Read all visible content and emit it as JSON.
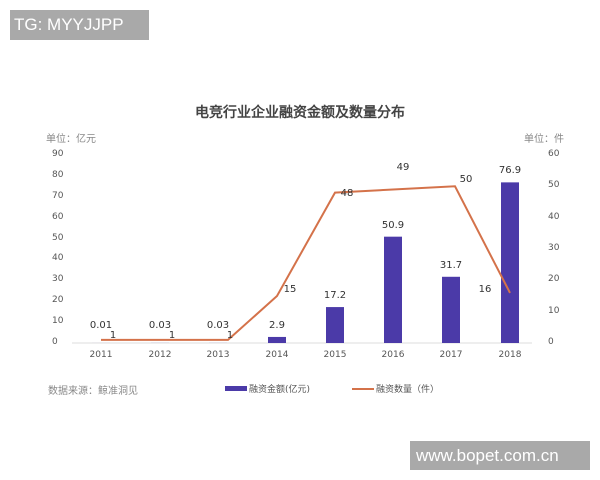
{
  "watermarks": {
    "top_left": "TG: MYYJJPP",
    "bottom_right": "www.bopet.com.cn"
  },
  "chart": {
    "title": "电竞行业企业融资金额及数量分布",
    "left_unit": "单位：亿元",
    "right_unit": "单位：件",
    "source": "数据来源：鲸准洞见",
    "legend": {
      "bar": "融资金额(亿元)",
      "line": "融资数量（件）"
    },
    "left_ticks": [
      "0",
      "10",
      "20",
      "30",
      "40",
      "50",
      "60",
      "70",
      "80",
      "90"
    ],
    "right_ticks": [
      "0",
      "10",
      "20",
      "30",
      "40",
      "50",
      "60"
    ],
    "categories": [
      "2011",
      "2012",
      "2013",
      "2014",
      "2015",
      "2016",
      "2017",
      "2018"
    ],
    "bar_labels": [
      "0.01",
      "0.03",
      "0.03",
      "2.9",
      "17.2",
      "50.9",
      "31.7",
      "76.9"
    ],
    "line_labels": [
      "1",
      "1",
      "1",
      "15",
      "48",
      "49",
      "50",
      "16"
    ]
  },
  "colors": {
    "bar": "#4b3aa8",
    "line": "#d4724a",
    "axis": "#dddddd"
  },
  "chart_data": {
    "type": "bar+line",
    "title": "电竞行业企业融资金额及数量分布",
    "categories": [
      "2011",
      "2012",
      "2013",
      "2014",
      "2015",
      "2016",
      "2017",
      "2018"
    ],
    "series": [
      {
        "name": "融资金额(亿元)",
        "type": "bar",
        "axis": "left",
        "values": [
          0.01,
          0.03,
          0.03,
          2.9,
          17.2,
          50.9,
          31.7,
          76.9
        ]
      },
      {
        "name": "融资数量（件）",
        "type": "line",
        "axis": "right",
        "values": [
          1,
          1,
          1,
          15,
          48,
          49,
          50,
          16
        ]
      }
    ],
    "ylabel": "单位：亿元",
    "y2label": "单位：件",
    "ylim": [
      0,
      90
    ],
    "y2lim": [
      0,
      60
    ],
    "legend_position": "bottom",
    "grid": false,
    "source": "数据来源：鲸准洞见"
  }
}
